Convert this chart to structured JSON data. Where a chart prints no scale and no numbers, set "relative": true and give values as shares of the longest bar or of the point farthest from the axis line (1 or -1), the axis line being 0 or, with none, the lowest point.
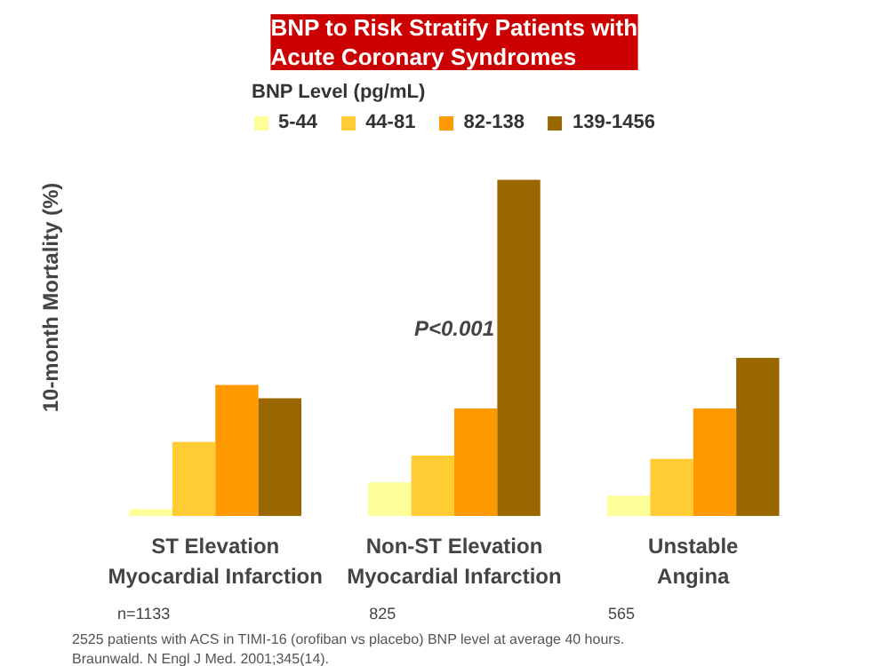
{
  "chart_data": {
    "type": "bar",
    "title": "BNP to Risk Stratify Patients with\nAcute Coronary Syndromes",
    "ylabel": "10-month Mortality (%)",
    "legend_title": "BNP Level (pg/mL)",
    "relative": true,
    "legend": "top",
    "categories": [
      "ST Elevation\nMyocardial Infarction",
      "Non-ST Elevation\nMyocardial Infarction",
      "Unstable\nAngina"
    ],
    "series": [
      {
        "name": "5-44",
        "color": "#ffff99",
        "values": [
          0.02,
          0.1,
          0.06
        ]
      },
      {
        "name": "44-81",
        "color": "#ffcc33",
        "values": [
          0.22,
          0.18,
          0.17
        ]
      },
      {
        "name": "82-138",
        "color": "#ff9900",
        "values": [
          0.39,
          0.32,
          0.32
        ]
      },
      {
        "name": "139-1456",
        "color": "#996600",
        "values": [
          0.35,
          1.0,
          0.47
        ]
      }
    ],
    "annotations": [
      "P<0.001",
      "n=1133",
      "825",
      "565",
      "2525 patients with ACS in TIMI-16 (orofiban vs placebo) BNP level at average 40 hours.",
      "Braunwald. N Engl J Med. 2001;345(14)."
    ]
  }
}
